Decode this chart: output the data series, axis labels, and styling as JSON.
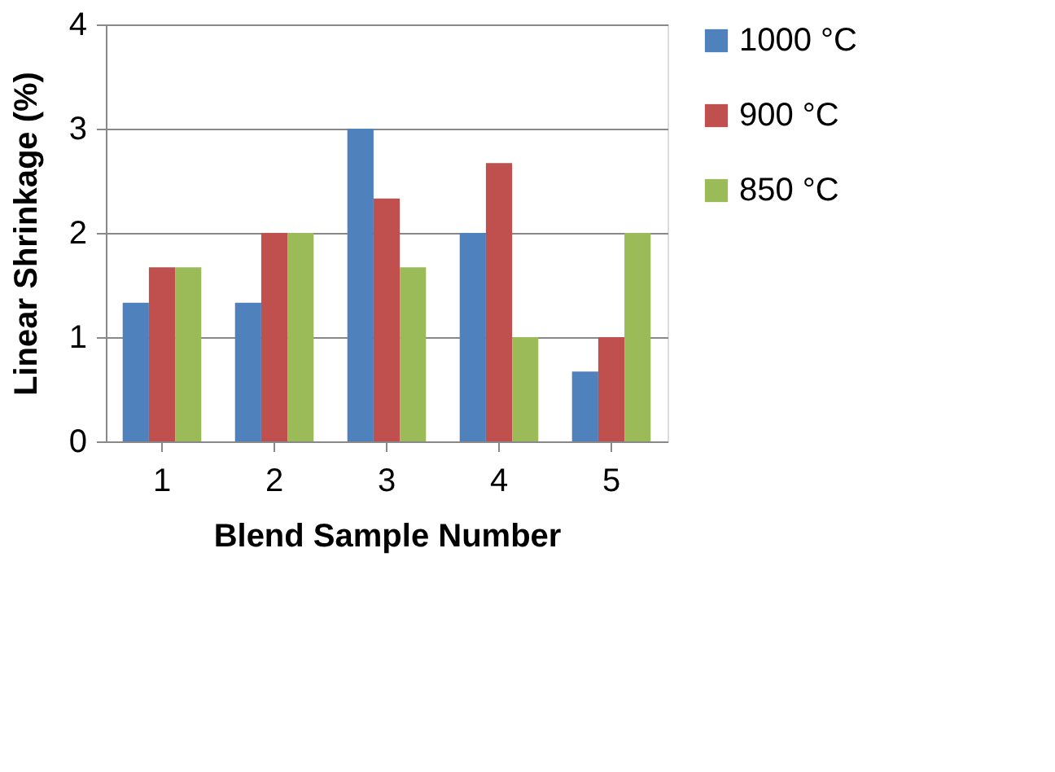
{
  "chart_data": {
    "type": "bar",
    "xlabel": "Blend Sample Number",
    "ylabel": "Linear Shrinkage (%)",
    "categories": [
      "1",
      "2",
      "3",
      "4",
      "5"
    ],
    "series": [
      {
        "name": "1000 °C",
        "color": "#4f81bd",
        "values": [
          1.33,
          1.33,
          3,
          2,
          0.67
        ]
      },
      {
        "name": "900 °C",
        "color": "#c0504d",
        "values": [
          1.67,
          2,
          2.33,
          2.67,
          1
        ]
      },
      {
        "name": "850 °C",
        "color": "#9bbb59",
        "values": [
          1.67,
          2,
          1.67,
          1,
          2
        ]
      }
    ],
    "ylim": [
      0,
      4
    ],
    "yticks": [
      0,
      1,
      2,
      3,
      4
    ],
    "grid": "y",
    "legend": "right"
  }
}
